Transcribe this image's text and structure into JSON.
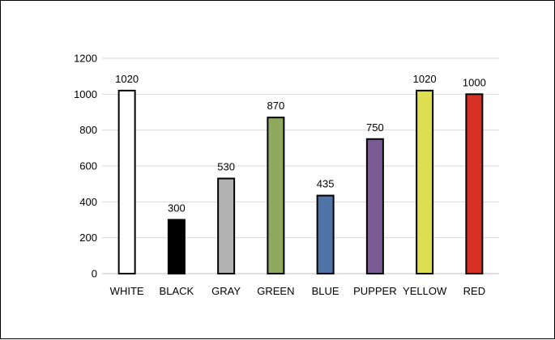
{
  "chart_data": {
    "type": "bar",
    "title": "",
    "xlabel": "",
    "ylabel": "",
    "categories": [
      "WHITE",
      "BLACK",
      "GRAY",
      "GREEN",
      "BLUE",
      "PUPPER",
      "YELLOW",
      "RED"
    ],
    "values": [
      1020,
      300,
      530,
      870,
      435,
      750,
      1020,
      1000
    ],
    "data_labels": [
      "1020",
      "300",
      "530",
      "870",
      "435",
      "750",
      "1020",
      "1000"
    ],
    "bar_colors": [
      "#ffffff",
      "#000000",
      "#b3b3b3",
      "#8faa5f",
      "#4f73a6",
      "#7a5b94",
      "#dede52",
      "#d93025"
    ],
    "ylim": [
      0,
      1200
    ],
    "yticks": [
      0,
      200,
      400,
      600,
      800,
      1000,
      1200
    ],
    "ytick_labels": [
      "0",
      "200",
      "400",
      "600",
      "800",
      "1000",
      "1200"
    ],
    "grid": true,
    "legend": "none"
  }
}
